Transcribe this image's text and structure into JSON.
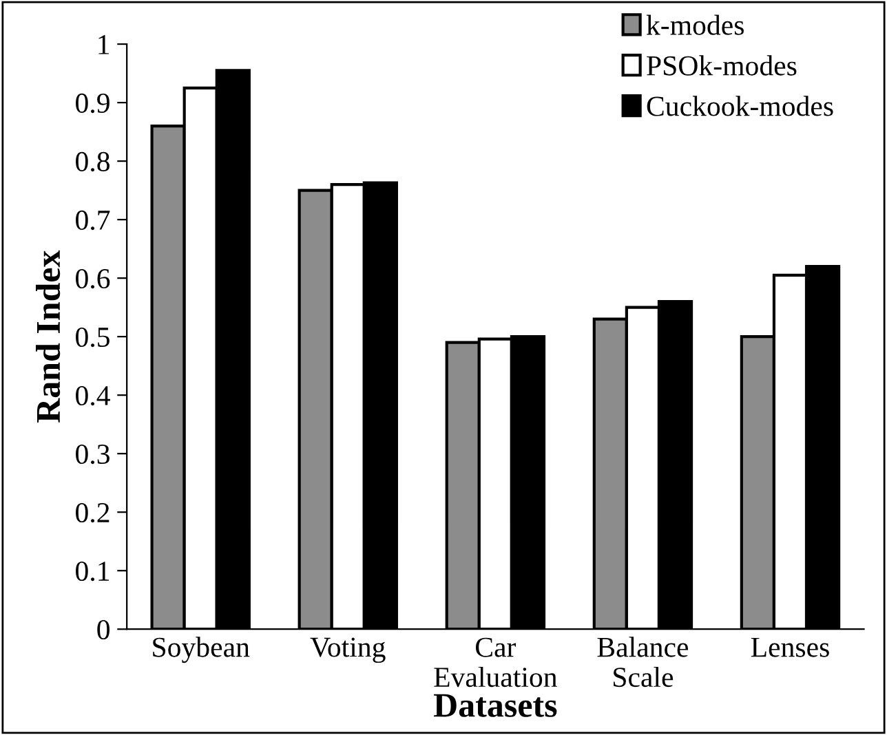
{
  "chart_data": {
    "type": "bar",
    "xlabel": "Datasets",
    "ylabel": "Rand Index",
    "categories": [
      "Soybean",
      "Voting",
      "Car\nEvaluation",
      "Balance\nScale",
      "Lenses"
    ],
    "series": [
      {
        "name": "k-modes",
        "color": "#8c8c8c",
        "values": [
          0.86,
          0.75,
          0.49,
          0.53,
          0.5
        ]
      },
      {
        "name": "PSOk-modes",
        "color": "#ffffff",
        "values": [
          0.925,
          0.76,
          0.496,
          0.55,
          0.605
        ]
      },
      {
        "name": "Cuckook-modes",
        "color": "#000000",
        "values": [
          0.955,
          0.763,
          0.5,
          0.56,
          0.62
        ]
      }
    ],
    "ylim": [
      0,
      1
    ],
    "yticks": [
      0,
      0.1,
      0.2,
      0.3,
      0.4,
      0.5,
      0.6,
      0.7,
      0.8,
      0.9,
      1
    ],
    "grid": false,
    "legend": "top right"
  }
}
